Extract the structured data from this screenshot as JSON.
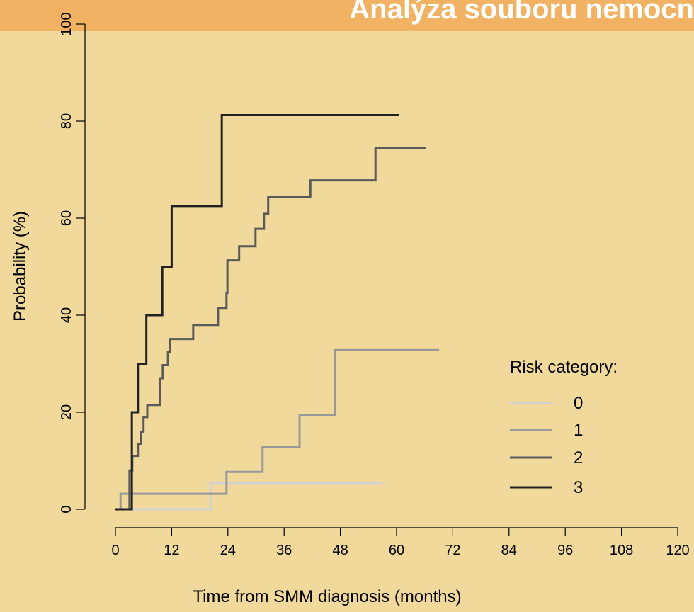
{
  "chart_data": {
    "type": "step",
    "title": "Analýza souboru nemocn",
    "x_label": "Time from SMM diagnosis (months)",
    "y_label": "Probability (%)",
    "legend_title": "Risk category:",
    "xlim": [
      0,
      120
    ],
    "xticks": [
      0,
      12,
      24,
      36,
      48,
      60,
      72,
      84,
      96,
      108,
      120
    ],
    "ylim": [
      0,
      100
    ],
    "yticks": [
      0,
      20,
      40,
      60,
      80,
      100
    ],
    "series": [
      {
        "name": "0",
        "color": "#d2d2d2",
        "x": [
          0,
          20.3,
          57
        ],
        "values": [
          0,
          5.4,
          5.4
        ]
      },
      {
        "name": "1",
        "color": "#999999",
        "x": [
          0,
          1.1,
          23.7,
          31.4,
          39.3,
          46.8,
          69.1
        ],
        "values": [
          0,
          3.2,
          7.7,
          12.9,
          19.4,
          32.8,
          32.8
        ]
      },
      {
        "name": "2",
        "color": "#5a5a5a",
        "x": [
          0,
          3.0,
          3.6,
          4.8,
          5.4,
          6.0,
          6.8,
          9.5,
          10.1,
          11.2,
          11.6,
          16.6,
          21.9,
          23.7,
          23.9,
          26.4,
          29.9,
          31.7,
          32.6,
          41.6,
          55.5,
          66.2
        ],
        "values": [
          0,
          8,
          11,
          13.5,
          16,
          19,
          21.5,
          27,
          29.7,
          32.4,
          35.1,
          38,
          41.5,
          44.6,
          51.3,
          54.2,
          57.8,
          60.9,
          64.4,
          67.8,
          74.4,
          74.4
        ]
      },
      {
        "name": "3",
        "color": "#222222",
        "x": [
          0,
          3.5,
          4.8,
          6.6,
          10,
          12,
          22.7,
          60.5
        ],
        "values": [
          0,
          20,
          30,
          40,
          50,
          62.5,
          81.25,
          81.25
        ]
      }
    ]
  }
}
